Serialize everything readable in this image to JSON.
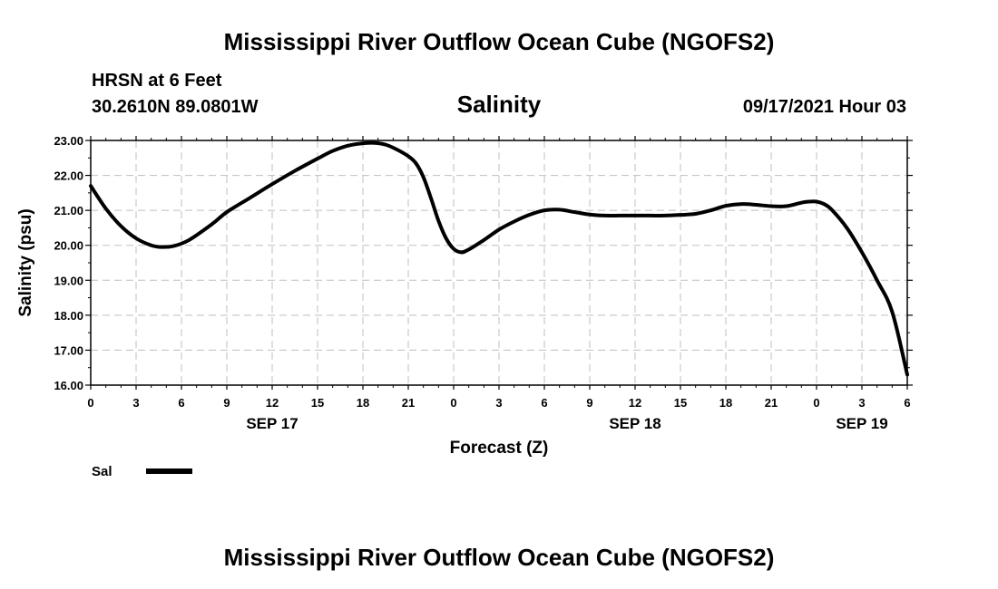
{
  "chart_data": {
    "type": "line",
    "title": "Mississippi River Outflow Ocean Cube (NGOFS2)",
    "footer_title": "Mississippi River Outflow Ocean Cube (NGOFS2)",
    "station_line1": "HRSN at 6 Feet",
    "station_line2": "30.2610N  89.0801W",
    "subtitle": "Salinity",
    "timestamp": "09/17/2021 Hour 03",
    "ylabel": "Salinity (psu)",
    "xlabel": "Forecast (Z)",
    "ylim": [
      16.0,
      23.0
    ],
    "yticks": [
      "23.00",
      "22.00",
      "21.00",
      "20.00",
      "19.00",
      "18.00",
      "17.00",
      "16.00"
    ],
    "xlim": [
      0,
      54
    ],
    "xticks": [
      "0",
      "3",
      "6",
      "9",
      "12",
      "15",
      "18",
      "21",
      "0",
      "3",
      "6",
      "9",
      "12",
      "15",
      "18",
      "21",
      "0",
      "3",
      "6"
    ],
    "date_labels": [
      {
        "label": "SEP 17",
        "hour": 12
      },
      {
        "label": "SEP 18",
        "hour": 36
      },
      {
        "label": "SEP 19",
        "hour": 51
      }
    ],
    "grid": true,
    "legend": "bottom-left",
    "series": [
      {
        "name": "Sal",
        "color": "#000000",
        "x": [
          0,
          1,
          2,
          3,
          4,
          4.7,
          5.5,
          6.5,
          8,
          9,
          10.5,
          12,
          13.5,
          15,
          16,
          17,
          18,
          18.8,
          19.5,
          20.2,
          21,
          21.5,
          22,
          22.5,
          23,
          23.5,
          24,
          24.5,
          25,
          26,
          27,
          28,
          29,
          30,
          31,
          32,
          33,
          34,
          35,
          36,
          37,
          38,
          39,
          40,
          41,
          42,
          43,
          44,
          45,
          46,
          47,
          47.5,
          48,
          48.5,
          49,
          50,
          51,
          52,
          53,
          54
        ],
        "y": [
          21.7,
          21.05,
          20.55,
          20.2,
          20.0,
          19.95,
          19.98,
          20.15,
          20.6,
          20.95,
          21.35,
          21.75,
          22.13,
          22.48,
          22.7,
          22.85,
          22.92,
          22.93,
          22.88,
          22.75,
          22.55,
          22.35,
          21.95,
          21.35,
          20.7,
          20.2,
          19.9,
          19.8,
          19.88,
          20.15,
          20.45,
          20.68,
          20.87,
          21.0,
          21.02,
          20.95,
          20.88,
          20.85,
          20.85,
          20.85,
          20.85,
          20.85,
          20.87,
          20.9,
          21.0,
          21.13,
          21.18,
          21.16,
          21.12,
          21.12,
          21.22,
          21.25,
          21.25,
          21.18,
          21.02,
          20.5,
          19.8,
          19.0,
          18.1,
          16.3
        ]
      }
    ]
  }
}
